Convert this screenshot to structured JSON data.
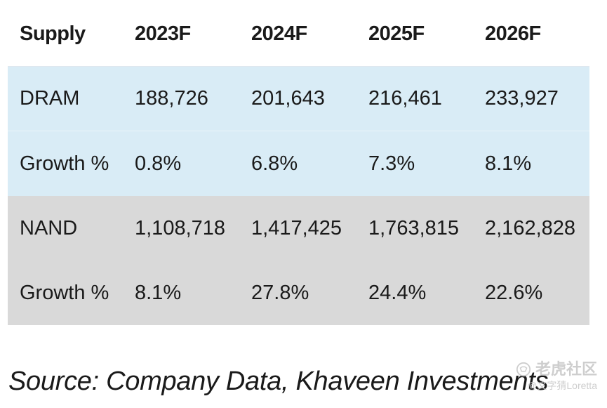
{
  "table": {
    "headers": [
      "Supply",
      "2023F",
      "2024F",
      "2025F",
      "2026F"
    ],
    "rows": [
      {
        "group": "dram",
        "cells": [
          "DRAM",
          "188,726",
          "201,643",
          "216,461",
          "233,927"
        ]
      },
      {
        "group": "dram",
        "cells": [
          "Growth %",
          "0.8%",
          "6.8%",
          "7.3%",
          "8.1%"
        ]
      },
      {
        "group": "nand",
        "cells": [
          "NAND",
          "1,108,718",
          "1,417,425",
          "1,763,815",
          "2,162,828"
        ]
      },
      {
        "group": "nand",
        "cells": [
          "Growth %",
          "8.1%",
          "27.8%",
          "24.4%",
          "22.6%"
        ]
      }
    ]
  },
  "source": "Source: Company Data, Khaveen Investments",
  "watermark": {
    "brand": "老虎社区",
    "user": "@文字猜Loretta"
  },
  "colors": {
    "dram_band": "#d9ecf6",
    "nand_band": "#d9d9d9",
    "text": "#1a1a1a",
    "watermark": "#c9c9c9"
  }
}
